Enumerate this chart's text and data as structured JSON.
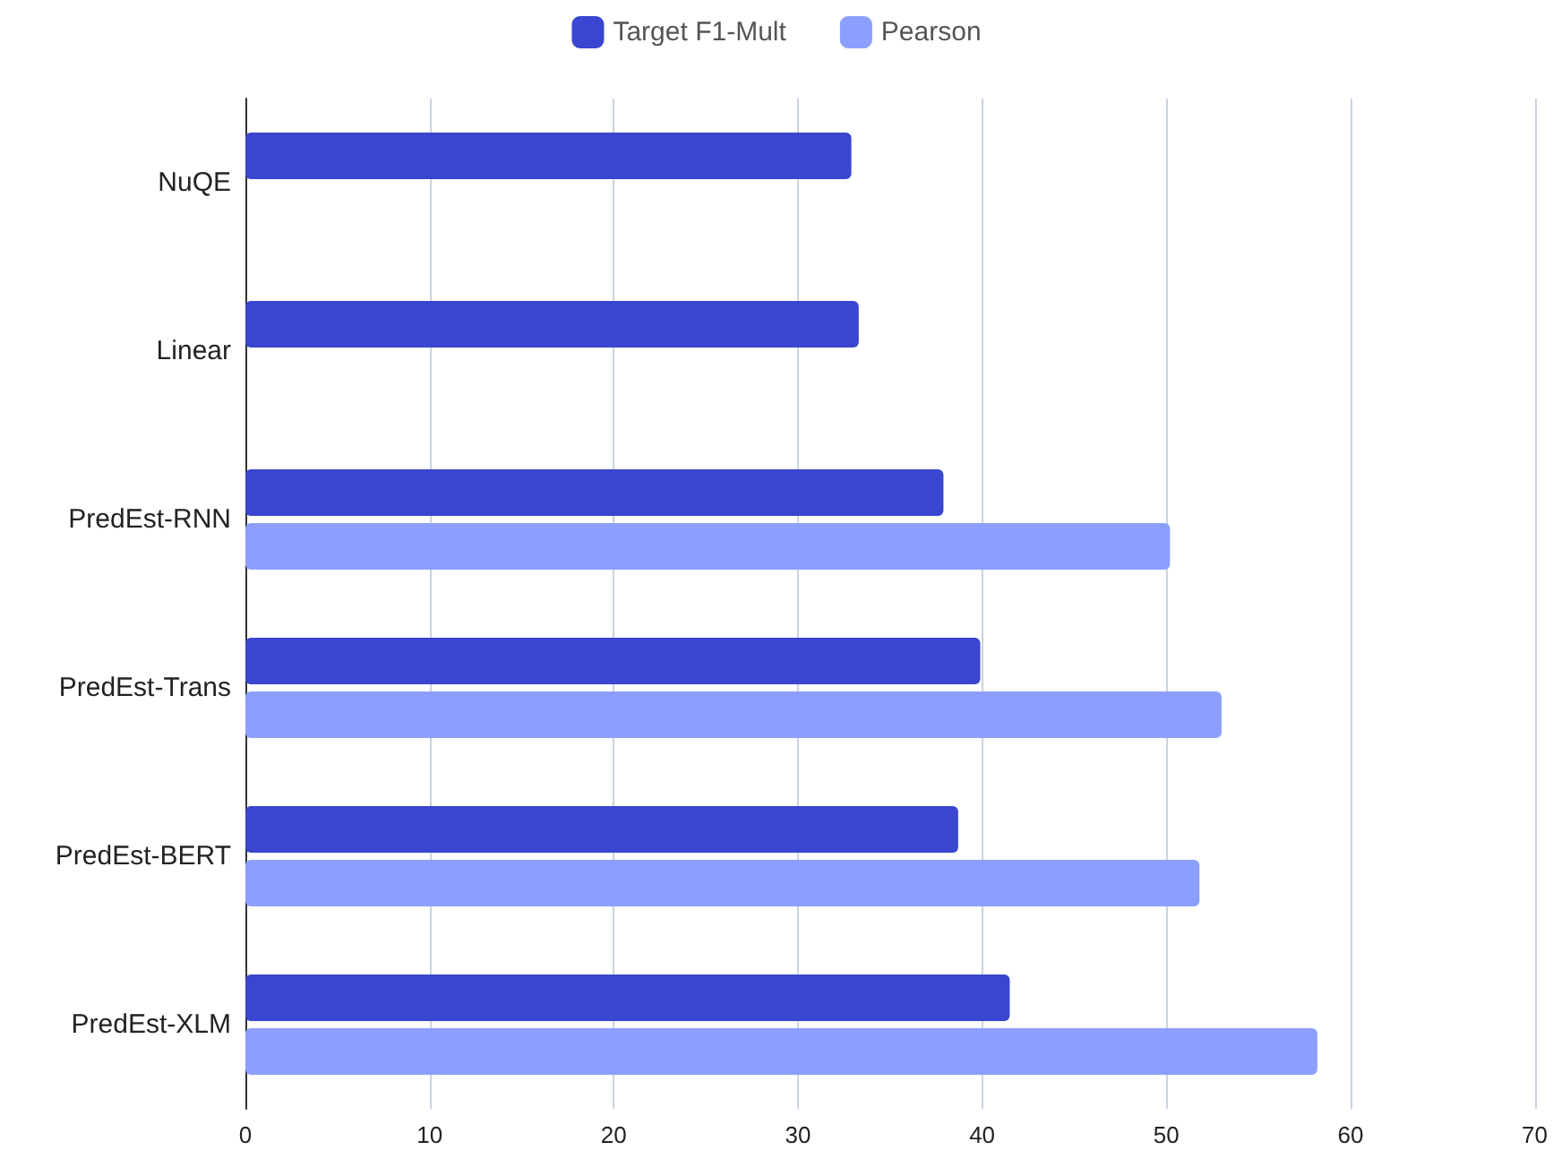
{
  "chart_data": {
    "type": "bar",
    "orientation": "horizontal",
    "categories": [
      "NuQE",
      "Linear",
      "PredEst-RNN",
      "PredEst-Trans",
      "PredEst-BERT",
      "PredEst-XLM"
    ],
    "series": [
      {
        "name": "Target F1-Mult",
        "color": "#3a46cf",
        "values": [
          32.9,
          33.3,
          37.9,
          39.9,
          38.7,
          41.5
        ]
      },
      {
        "name": "Pearson",
        "color": "#8c9fff",
        "values": [
          null,
          null,
          50.2,
          53.0,
          51.8,
          58.2
        ]
      }
    ],
    "xlim": [
      0,
      70
    ],
    "xticks": [
      0,
      10,
      20,
      30,
      40,
      50,
      60,
      70
    ],
    "grid": "x",
    "legend": "top"
  }
}
